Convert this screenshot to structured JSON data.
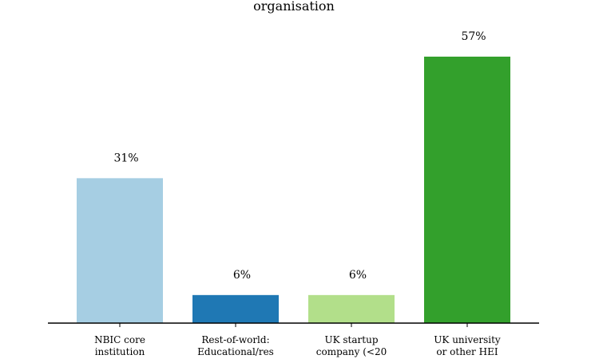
{
  "chart_data": {
    "type": "bar",
    "title": "organisation",
    "categories": [
      [
        "NBIC core",
        "institution"
      ],
      [
        "Rest-of-world:",
        "Educational/res"
      ],
      [
        "UK startup",
        "company (<20"
      ],
      [
        "UK university",
        "or other HEI"
      ]
    ],
    "values": [
      31,
      6,
      6,
      57
    ],
    "value_labels": [
      "31%",
      "6%",
      "6%",
      "57%"
    ],
    "colors": [
      "#a6cee3",
      "#1f78b4",
      "#b2df8a",
      "#33a02c"
    ],
    "ylim": [
      0,
      57
    ],
    "grid": false,
    "xlabel": "",
    "ylabel": ""
  }
}
